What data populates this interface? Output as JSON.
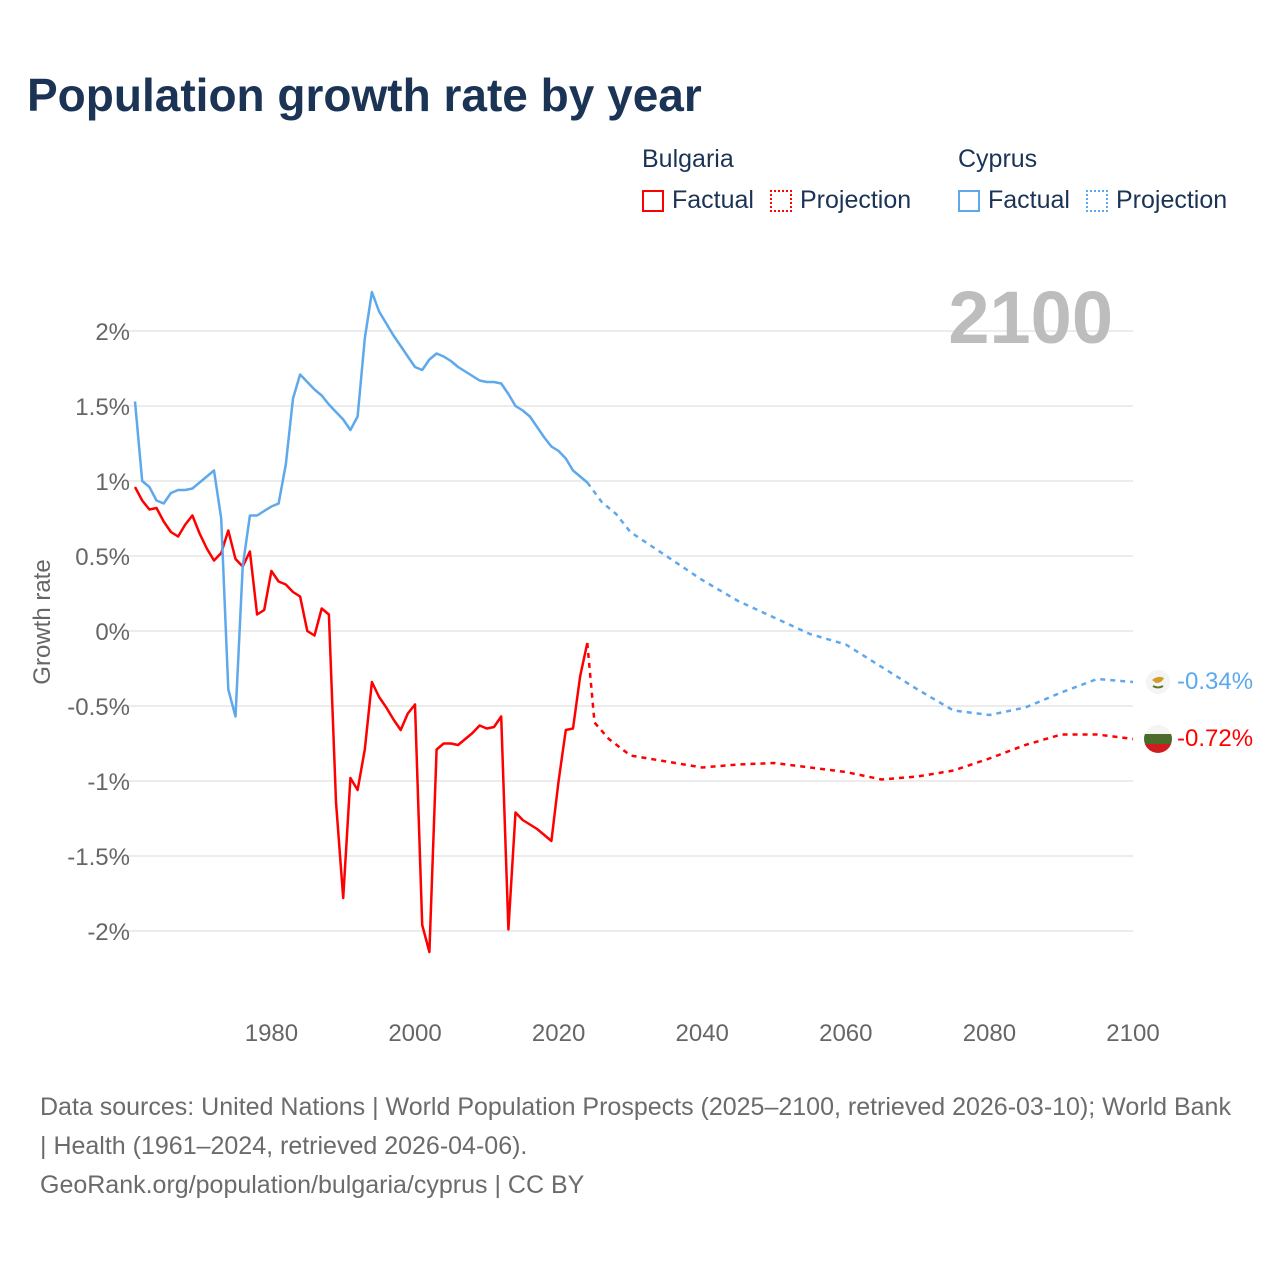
{
  "title": "Population growth rate by year",
  "legend": [
    {
      "country": "Bulgaria",
      "factual_label": "Factual",
      "projection_label": "Projection",
      "color": "#ff0000"
    },
    {
      "country": "Cyprus",
      "factual_label": "Factual",
      "projection_label": "Projection",
      "color": "#5ea8ec"
    }
  ],
  "year_display": "2100",
  "end_labels": {
    "cyprus": "-0.34%",
    "bulgaria": "-0.72%"
  },
  "footer": {
    "sources": "Data sources: United Nations | World Population Prospects (2025–2100, retrieved 2026-03-10); World Bank | Health (1961–2024, retrieved 2026-04-06).",
    "link": "GeoRank.org/population/bulgaria/cyprus | CC BY"
  },
  "chart_data": {
    "type": "line",
    "title": "Population growth rate by year",
    "xlabel": "",
    "ylabel": "Growth rate",
    "xlim": [
      1961,
      2100
    ],
    "ylim": [
      -2.5,
      2.5
    ],
    "x_ticks": [
      "1980",
      "2000",
      "2020",
      "2040",
      "2060",
      "2080",
      "2100"
    ],
    "y_ticks": [
      {
        "v": 2,
        "label": "2%"
      },
      {
        "v": 1.5,
        "label": "1.5%"
      },
      {
        "v": 1,
        "label": "1%"
      },
      {
        "v": 0.5,
        "label": "0.5%"
      },
      {
        "v": 0,
        "label": "0%"
      },
      {
        "v": -0.5,
        "label": "-0.5%"
      },
      {
        "v": -1,
        "label": "-1%"
      },
      {
        "v": -1.5,
        "label": "-1.5%"
      },
      {
        "v": -2,
        "label": "-2%"
      }
    ],
    "grid": true,
    "legend_position": "top-right",
    "series": [
      {
        "name": "Bulgaria Factual",
        "color": "#ff0000",
        "dashed": false,
        "x_start": 1961,
        "values": [
          0.96,
          0.87,
          0.81,
          0.82,
          0.73,
          0.66,
          0.63,
          0.71,
          0.77,
          0.65,
          0.55,
          0.47,
          0.52,
          0.67,
          0.48,
          0.43,
          0.53,
          0.11,
          0.14,
          0.4,
          0.33,
          0.31,
          0.26,
          0.23,
          0.0,
          -0.03,
          0.15,
          0.11,
          -1.14,
          -1.78,
          -0.98,
          -1.06,
          -0.79,
          -0.34,
          -0.44,
          -0.51,
          -0.59,
          -0.66,
          -0.55,
          -0.49,
          -1.96,
          -2.14,
          -0.79,
          -0.75,
          -0.75,
          -0.76,
          -0.72,
          -0.68,
          -0.63,
          -0.65,
          -0.64,
          -0.57,
          -1.99,
          -1.21,
          -1.26,
          -1.29,
          -1.32,
          -1.36,
          -1.4,
          -1.0,
          -0.66,
          -0.65,
          -0.3,
          -0.08
        ]
      },
      {
        "name": "Bulgaria Projection",
        "color": "#ff0000",
        "dashed": true,
        "x": [
          2024,
          2025,
          2027,
          2030,
          2035,
          2040,
          2045,
          2050,
          2055,
          2060,
          2065,
          2070,
          2075,
          2080,
          2085,
          2090,
          2095,
          2100
        ],
        "values": [
          -0.08,
          -0.61,
          -0.72,
          -0.83,
          -0.87,
          -0.91,
          -0.89,
          -0.88,
          -0.91,
          -0.94,
          -0.99,
          -0.97,
          -0.93,
          -0.85,
          -0.76,
          -0.69,
          -0.69,
          -0.72
        ]
      },
      {
        "name": "Cyprus Factual",
        "color": "#5ea8ec",
        "dashed": false,
        "x_start": 1961,
        "values": [
          1.53,
          1.0,
          0.96,
          0.87,
          0.85,
          0.92,
          0.94,
          0.94,
          0.95,
          0.99,
          1.03,
          1.07,
          0.75,
          -0.39,
          -0.57,
          0.43,
          0.77,
          0.77,
          0.8,
          0.83,
          0.85,
          1.11,
          1.55,
          1.71,
          1.66,
          1.61,
          1.57,
          1.51,
          1.46,
          1.41,
          1.34,
          1.43,
          1.95,
          2.26,
          2.13,
          2.05,
          1.97,
          1.9,
          1.83,
          1.76,
          1.74,
          1.81,
          1.85,
          1.83,
          1.8,
          1.76,
          1.73,
          1.7,
          1.67,
          1.66,
          1.66,
          1.65,
          1.58,
          1.5,
          1.47,
          1.43,
          1.36,
          1.29,
          1.23,
          1.2,
          1.15,
          1.07,
          1.03,
          0.99
        ]
      },
      {
        "name": "Cyprus Projection",
        "color": "#5ea8ec",
        "dashed": true,
        "x": [
          2024,
          2026,
          2028,
          2030,
          2035,
          2040,
          2045,
          2050,
          2055,
          2060,
          2065,
          2070,
          2075,
          2080,
          2085,
          2090,
          2095,
          2100
        ],
        "values": [
          0.99,
          0.86,
          0.78,
          0.66,
          0.5,
          0.34,
          0.2,
          0.09,
          -0.02,
          -0.09,
          -0.24,
          -0.39,
          -0.53,
          -0.56,
          -0.51,
          -0.41,
          -0.32,
          -0.34
        ]
      }
    ]
  }
}
